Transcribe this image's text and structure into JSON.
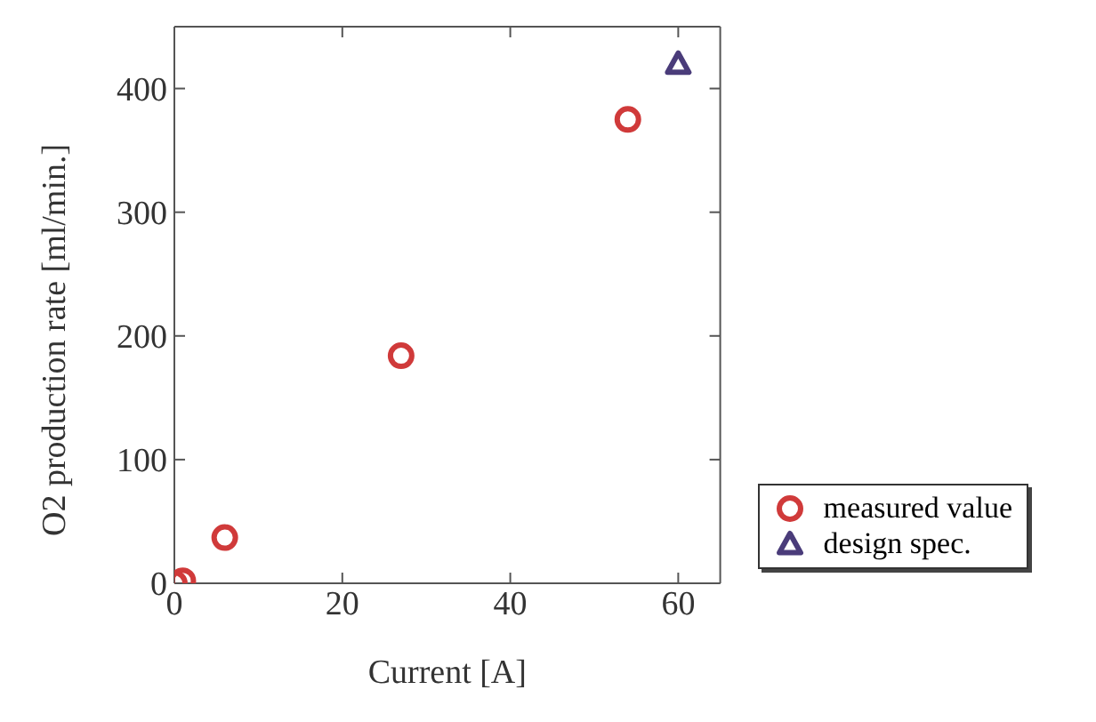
{
  "chart_data": {
    "type": "scatter",
    "xlabel": "Current [A]",
    "ylabel": "O2 production rate [ml/min.]",
    "xlim": [
      0,
      65
    ],
    "xticks": [
      0,
      20,
      40,
      60
    ],
    "ylim": [
      0,
      450
    ],
    "yticks": [
      0,
      100,
      200,
      300,
      400
    ],
    "grid": false,
    "legend": "bottom right",
    "series": [
      {
        "name": "measured value",
        "color": "#d03a3a",
        "marker": "circle",
        "x": [
          0,
          1,
          6,
          27,
          54
        ],
        "values": [
          0,
          2,
          37,
          184,
          375
        ]
      },
      {
        "name": "design spec.",
        "color": "#4a3c7a",
        "marker": "triangle",
        "x": [
          60
        ],
        "values": [
          420
        ]
      }
    ]
  }
}
